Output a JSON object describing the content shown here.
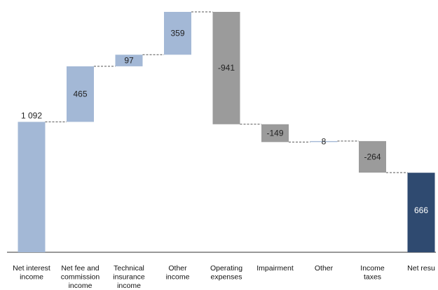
{
  "chart_data": {
    "type": "waterfall",
    "categories": [
      [
        "Net interest",
        "income"
      ],
      [
        "Net fee and",
        "commission",
        "income"
      ],
      [
        "Technical",
        "insurance",
        "income"
      ],
      [
        "Other",
        "income"
      ],
      [
        "Operating",
        "expenses"
      ],
      [
        "Impairment"
      ],
      [
        "Other"
      ],
      [
        "Income",
        "taxes"
      ],
      [
        "Net resu"
      ]
    ],
    "values": [
      1092,
      465,
      97,
      359,
      -941,
      -149,
      8,
      -264,
      666
    ],
    "value_labels": [
      "1 092",
      "465",
      "97",
      "359",
      "-941",
      "-149",
      "8",
      "-264",
      "666"
    ],
    "bar_kinds": [
      "start",
      "delta",
      "delta",
      "delta",
      "delta",
      "delta",
      "delta",
      "delta",
      "total"
    ],
    "ylim": [
      0,
      2013
    ],
    "grid": false,
    "colors": {
      "start": "#a3b8d6",
      "increase": "#a3b8d6",
      "decrease": "#9b9b9b",
      "total": "#2f4a70",
      "connector": "#555555",
      "axis": "#333333"
    }
  }
}
